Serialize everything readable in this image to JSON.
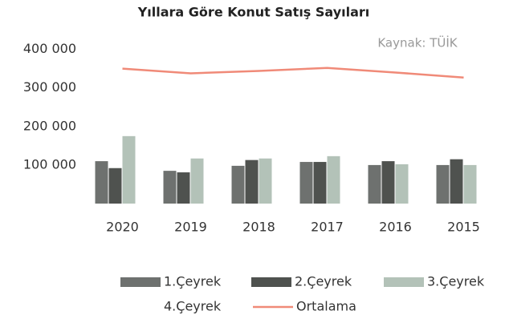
{
  "chart_data": {
    "type": "bar",
    "title": "Yıllara Göre Konut Satış Sayıları",
    "annotation": "Kaynak: TÜİK",
    "categories": [
      "2020",
      "2019",
      "2018",
      "2017",
      "2016",
      "2015"
    ],
    "series": [
      {
        "name": "1.Çeyrek",
        "color": "#6e716f",
        "values": [
          110000,
          85000,
          98000,
          108000,
          100000,
          100000
        ]
      },
      {
        "name": "2.Çeyrek",
        "color": "#4f524f",
        "values": [
          92000,
          81000,
          113000,
          108000,
          110000,
          115000
        ]
      },
      {
        "name": "3.Çeyrek",
        "color": "#b3c2b8",
        "values": [
          175000,
          117000,
          117000,
          123000,
          102000,
          100000
        ]
      },
      {
        "name": "4.Çeyrek",
        "color": "#ffffff",
        "values": [
          null,
          null,
          null,
          null,
          null,
          null
        ]
      },
      {
        "name": "Ortalama",
        "type": "line",
        "color": "#f08a78",
        "values": [
          350000,
          338000,
          344000,
          352000,
          340000,
          327000
        ]
      }
    ],
    "ylim": [
      0,
      420000
    ],
    "yticks": [
      {
        "value": 100000,
        "label": "100 000"
      },
      {
        "value": 200000,
        "label": "200 000"
      },
      {
        "value": 300000,
        "label": "300 000"
      },
      {
        "value": 400000,
        "label": "400 000"
      }
    ],
    "grid": false,
    "legend": "bottom"
  }
}
